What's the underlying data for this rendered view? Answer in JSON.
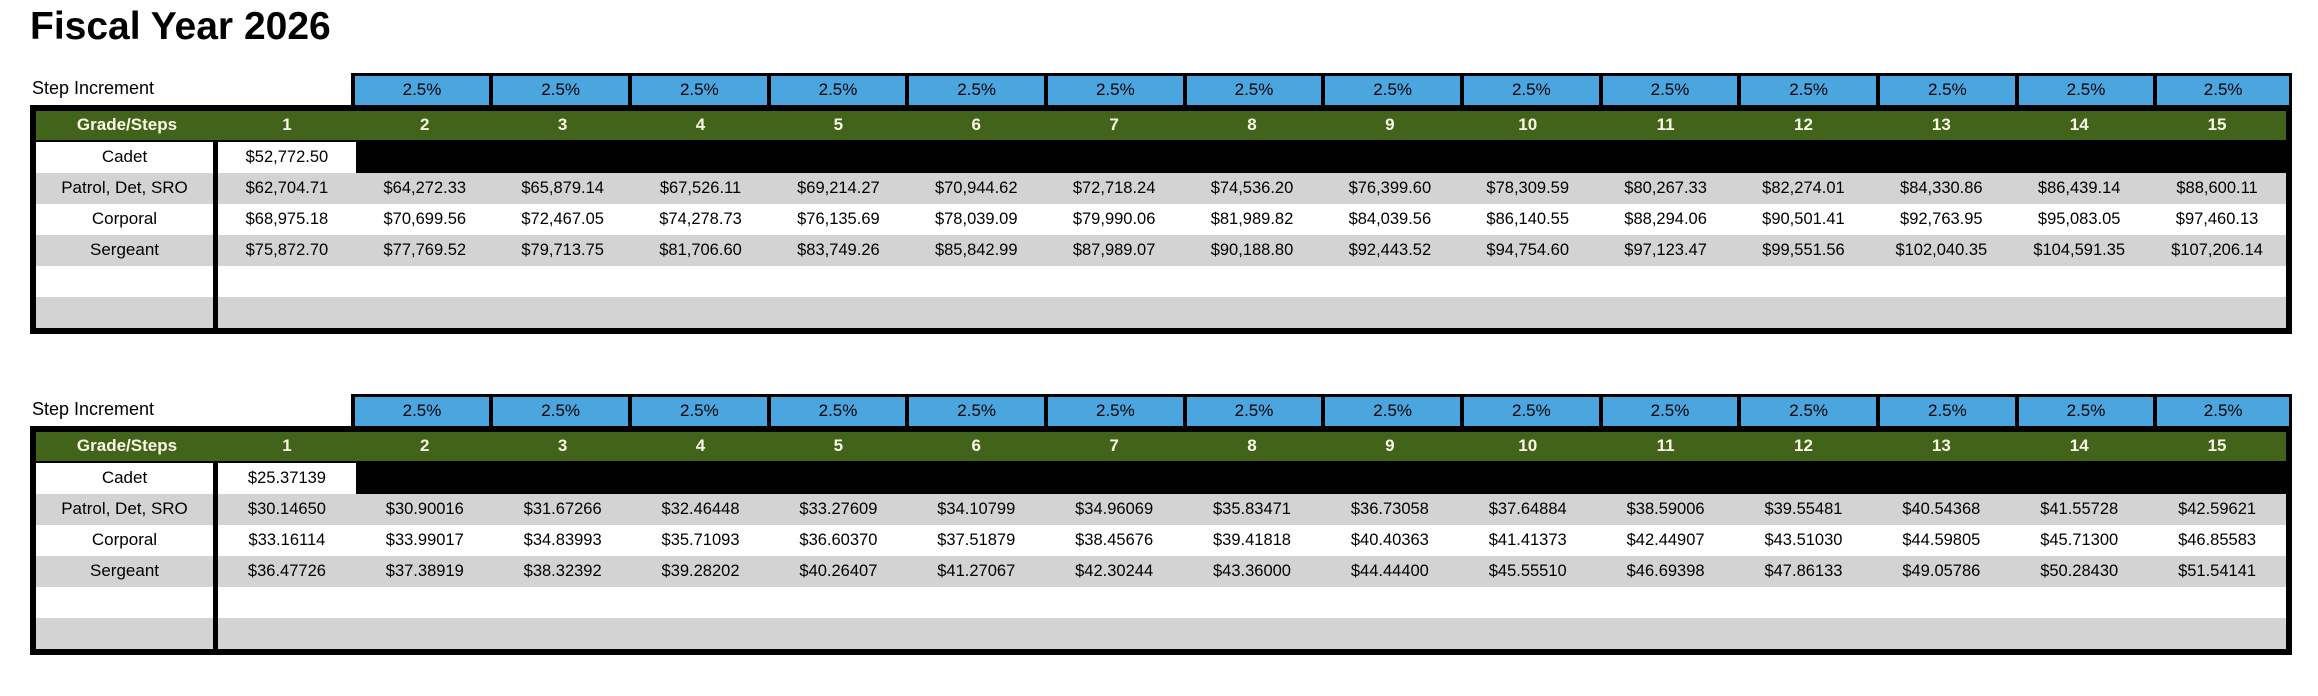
{
  "title": "Fiscal Year 2026",
  "colors": {
    "increment_fill": "#4BA5DF",
    "header_fill": "#42631A",
    "header_text": "#FAF7E6",
    "alt_row_fill": "#D3D3D3",
    "blacked_out_fill": "#000000",
    "border": "#000000"
  },
  "tables": [
    {
      "name": "annual-salary-table",
      "increment_label": "Step Increment",
      "increment_values": [
        "2.5%",
        "2.5%",
        "2.5%",
        "2.5%",
        "2.5%",
        "2.5%",
        "2.5%",
        "2.5%",
        "2.5%",
        "2.5%",
        "2.5%",
        "2.5%",
        "2.5%",
        "2.5%"
      ],
      "grade_header": "Grade/Steps",
      "step_headers": [
        "1",
        "2",
        "3",
        "4",
        "5",
        "6",
        "7",
        "8",
        "9",
        "10",
        "11",
        "12",
        "13",
        "14",
        "15"
      ],
      "rows": [
        {
          "label": "Cadet",
          "type": "cadet",
          "shade": "white",
          "values": [
            "$52,772.50"
          ]
        },
        {
          "label": "Patrol, Det, SRO",
          "type": "data",
          "shade": "gray",
          "values": [
            "$62,704.71",
            "$64,272.33",
            "$65,879.14",
            "$67,526.11",
            "$69,214.27",
            "$70,944.62",
            "$72,718.24",
            "$74,536.20",
            "$76,399.60",
            "$78,309.59",
            "$80,267.33",
            "$82,274.01",
            "$84,330.86",
            "$86,439.14",
            "$88,600.11"
          ]
        },
        {
          "label": "Corporal",
          "type": "data",
          "shade": "white",
          "values": [
            "$68,975.18",
            "$70,699.56",
            "$72,467.05",
            "$74,278.73",
            "$76,135.69",
            "$78,039.09",
            "$79,990.06",
            "$81,989.82",
            "$84,039.56",
            "$86,140.55",
            "$88,294.06",
            "$90,501.41",
            "$92,763.95",
            "$95,083.05",
            "$97,460.13"
          ]
        },
        {
          "label": "Sergeant",
          "type": "data",
          "shade": "gray",
          "values": [
            "$75,872.70",
            "$77,769.52",
            "$79,713.75",
            "$81,706.60",
            "$83,749.26",
            "$85,842.99",
            "$87,989.07",
            "$90,188.80",
            "$92,443.52",
            "$94,754.60",
            "$97,123.47",
            "$99,551.56",
            "$102,040.35",
            "$104,591.35",
            "$107,206.14"
          ]
        },
        {
          "label": "",
          "type": "empty",
          "shade": "white",
          "values": []
        },
        {
          "label": "",
          "type": "empty",
          "shade": "gray",
          "values": []
        }
      ]
    },
    {
      "name": "hourly-rate-table",
      "increment_label": "Step Increment",
      "increment_values": [
        "2.5%",
        "2.5%",
        "2.5%",
        "2.5%",
        "2.5%",
        "2.5%",
        "2.5%",
        "2.5%",
        "2.5%",
        "2.5%",
        "2.5%",
        "2.5%",
        "2.5%",
        "2.5%"
      ],
      "grade_header": "Grade/Steps",
      "step_headers": [
        "1",
        "2",
        "3",
        "4",
        "5",
        "6",
        "7",
        "8",
        "9",
        "10",
        "11",
        "12",
        "13",
        "14",
        "15"
      ],
      "rows": [
        {
          "label": "Cadet",
          "type": "cadet",
          "shade": "white",
          "values": [
            "$25.37139"
          ]
        },
        {
          "label": "Patrol, Det, SRO",
          "type": "data",
          "shade": "gray",
          "values": [
            "$30.14650",
            "$30.90016",
            "$31.67266",
            "$32.46448",
            "$33.27609",
            "$34.10799",
            "$34.96069",
            "$35.83471",
            "$36.73058",
            "$37.64884",
            "$38.59006",
            "$39.55481",
            "$40.54368",
            "$41.55728",
            "$42.59621"
          ]
        },
        {
          "label": "Corporal",
          "type": "data",
          "shade": "white",
          "values": [
            "$33.16114",
            "$33.99017",
            "$34.83993",
            "$35.71093",
            "$36.60370",
            "$37.51879",
            "$38.45676",
            "$39.41818",
            "$40.40363",
            "$41.41373",
            "$42.44907",
            "$43.51030",
            "$44.59805",
            "$45.71300",
            "$46.85583"
          ]
        },
        {
          "label": "Sergeant",
          "type": "data",
          "shade": "gray",
          "values": [
            "$36.47726",
            "$37.38919",
            "$38.32392",
            "$39.28202",
            "$40.26407",
            "$41.27067",
            "$42.30244",
            "$43.36000",
            "$44.44400",
            "$45.55510",
            "$46.69398",
            "$47.86133",
            "$49.05786",
            "$50.28430",
            "$51.54141"
          ]
        },
        {
          "label": "",
          "type": "empty",
          "shade": "white",
          "values": []
        },
        {
          "label": "",
          "type": "empty",
          "shade": "gray",
          "values": []
        }
      ]
    }
  ]
}
